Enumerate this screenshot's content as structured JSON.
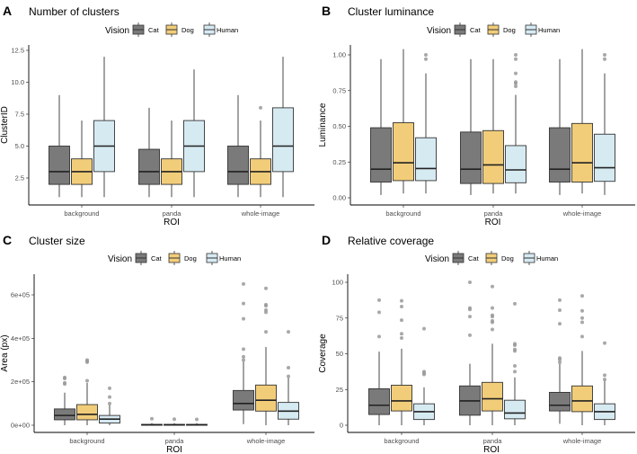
{
  "legend": {
    "title": "Vision",
    "items": [
      "Cat",
      "Dog",
      "Human"
    ]
  },
  "colors": {
    "Cat": "#7a7a7a",
    "Dog": "#f2cd79",
    "Human": "#d6eaf2",
    "outlier": "#9a9a9a",
    "line": "#333333"
  },
  "chart_data": [
    {
      "type": "box",
      "panel": "A",
      "title": "Number of clusters",
      "xlabel": "ROI",
      "ylabel": "ClusterID",
      "categories": [
        "background",
        "panda",
        "whole-image"
      ],
      "yticks": [
        2.5,
        5.0,
        7.5,
        10.0,
        12.5
      ],
      "ytick_labels": [
        "2.5",
        "5.0",
        "7.5",
        "10.0",
        "12.5"
      ],
      "series": [
        {
          "name": "Cat",
          "boxes": [
            [
              1,
              2,
              3,
              5,
              9,
              []
            ],
            [
              1,
              2,
              3,
              4.75,
              8,
              []
            ],
            [
              1,
              2,
              3,
              5,
              9,
              []
            ]
          ]
        },
        {
          "name": "Dog",
          "boxes": [
            [
              1,
              2,
              3,
              4,
              7,
              []
            ],
            [
              1,
              2,
              3,
              4,
              7,
              []
            ],
            [
              1,
              2,
              3,
              4,
              7,
              [
                8
              ]
            ]
          ]
        },
        {
          "name": "Human",
          "boxes": [
            [
              1,
              3,
              5,
              7,
              12,
              []
            ],
            [
              1,
              3,
              5,
              7,
              11,
              []
            ],
            [
              1,
              3,
              5,
              8,
              12,
              []
            ]
          ]
        }
      ]
    },
    {
      "type": "box",
      "panel": "B",
      "title": "Cluster luminance",
      "xlabel": "ROI",
      "ylabel": "Luminance",
      "categories": [
        "background",
        "panda",
        "whole-image"
      ],
      "yticks": [
        0,
        0.25,
        0.5,
        0.75,
        1.0
      ],
      "ytick_labels": [
        "0.00",
        "0.25",
        "0.50",
        "0.75",
        "1.00"
      ],
      "series": [
        {
          "name": "Cat",
          "boxes": [
            [
              0.02,
              0.11,
              0.2,
              0.49,
              0.97,
              []
            ],
            [
              0.02,
              0.1,
              0.2,
              0.46,
              0.97,
              []
            ],
            [
              0.02,
              0.11,
              0.2,
              0.49,
              0.97,
              []
            ]
          ]
        },
        {
          "name": "Dog",
          "boxes": [
            [
              0.03,
              0.12,
              0.245,
              0.525,
              1.04,
              []
            ],
            [
              0.03,
              0.1,
              0.23,
              0.47,
              0.97,
              []
            ],
            [
              0.03,
              0.11,
              0.245,
              0.52,
              1.04,
              []
            ]
          ]
        },
        {
          "name": "Human",
          "boxes": [
            [
              0.03,
              0.12,
              0.205,
              0.42,
              0.87,
              [
                0.97,
                1.0
              ]
            ],
            [
              0.03,
              0.105,
              0.195,
              0.365,
              0.72,
              [
                0.78,
                0.8,
                0.81,
                0.87,
                0.97,
                1.0
              ]
            ],
            [
              0.02,
              0.115,
              0.21,
              0.445,
              0.87,
              [
                0.97,
                1.0
              ]
            ]
          ]
        }
      ]
    },
    {
      "type": "box",
      "panel": "C",
      "title": "Cluster size",
      "xlabel": "ROI",
      "ylabel": "Area (px)",
      "categories": [
        "background",
        "panda",
        "whole-image"
      ],
      "yticks": [
        0,
        200000,
        400000,
        600000
      ],
      "ytick_labels": [
        "0e+00",
        "2e+05",
        "4e+05",
        "6e+05"
      ],
      "series": [
        {
          "name": "Cat",
          "boxes": [
            [
              0,
              25000,
              45000,
              75000,
              150000,
              [
                190000,
                195000,
                215000,
                220000
              ]
            ],
            [
              0,
              0,
              2000,
              4000,
              10000,
              [
                30000
              ]
            ],
            [
              5000,
              70000,
              100000,
              160000,
              295000,
              [
                300000,
                315000,
                350000,
                490000,
                560000,
                650000
              ]
            ]
          ]
        },
        {
          "name": "Dog",
          "boxes": [
            [
              0,
              25000,
              50000,
              95000,
              195000,
              [
                205000,
                290000,
                295000,
                300000
              ]
            ],
            [
              0,
              0,
              2000,
              4000,
              10000,
              [
                28000
              ]
            ],
            [
              0,
              65000,
              115000,
              185000,
              360000,
              [
                430000,
                520000,
                530000,
                550000,
                555000,
                630000
              ]
            ]
          ]
        },
        {
          "name": "Human",
          "boxes": [
            [
              0,
              10000,
              28000,
              45000,
              95000,
              [
                100000,
                130000,
                170000
              ]
            ],
            [
              0,
              0,
              2000,
              4000,
              10000,
              [
                27000
              ]
            ],
            [
              0,
              28000,
              65000,
              105000,
              220000,
              [
                225000,
                265000,
                430000
              ]
            ]
          ]
        }
      ]
    },
    {
      "type": "box",
      "panel": "D",
      "title": "Relative coverage",
      "xlabel": "ROI",
      "ylabel": "Coverage",
      "categories": [
        "background",
        "panda",
        "whole-image"
      ],
      "yticks": [
        0,
        25,
        50,
        75,
        100
      ],
      "ytick_labels": [
        "0",
        "25",
        "50",
        "75",
        "100"
      ],
      "series": [
        {
          "name": "Cat",
          "boxes": [
            [
              0,
              7.5,
              14,
              25.5,
              51.5,
              [
                62,
                79,
                87.5
              ]
            ],
            [
              0,
              7,
              17,
              27.5,
              43,
              [
                63,
                76,
                81,
                82,
                100
              ]
            ],
            [
              1,
              10,
              14,
              23,
              43,
              [
                44,
                46,
                47,
                71,
                80.5,
                87.5
              ]
            ]
          ]
        },
        {
          "name": "Dog",
          "boxes": [
            [
              0,
              10,
              17,
              28,
              53.5,
              [
                61,
                64,
                73.5,
                83,
                87
              ]
            ],
            [
              0,
              10,
              18.5,
              30,
              57,
              [
                67,
                72,
                73,
                76,
                77,
                82,
                97
              ]
            ],
            [
              0,
              9.5,
              17,
              27.5,
              52,
              [
                62,
                72,
                75,
                80,
                90.5
              ]
            ]
          ]
        },
        {
          "name": "Human",
          "boxes": [
            [
              0,
              4,
              9.5,
              15,
              26.5,
              [
                35.5,
                36.5,
                37.5,
                67.5
              ]
            ],
            [
              0,
              4.5,
              8.5,
              17.5,
              33.5,
              [
                37.5,
                41.5,
                52,
                53,
                56,
                57,
                85
              ]
            ],
            [
              0,
              4,
              9.5,
              15,
              31.5,
              [
                32,
                35,
                57.5
              ]
            ]
          ]
        }
      ]
    }
  ]
}
